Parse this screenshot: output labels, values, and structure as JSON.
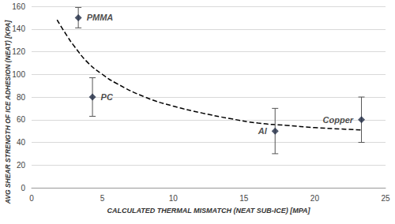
{
  "chart_data": {
    "type": "scatter",
    "x_label": "CALCULATED THERMAL MISMATCH (NEAT SUB-ICE) [MPA]",
    "y_label": "AVG SHEAR STRENGTH OF ICE ADHESION (NEAT) [KPA]",
    "points": {
      "labels": [
        "PMMA",
        "PC",
        "Al",
        "Copper"
      ],
      "x": [
        3.3,
        4.3,
        17.2,
        23.3
      ],
      "values": [
        150,
        80,
        50,
        60
      ],
      "y_err": [
        9,
        17,
        20,
        20
      ],
      "color": "#1f2a44",
      "marker": "diamond"
    },
    "trend": {
      "x": [
        1.8,
        2.5,
        3,
        4,
        5,
        6,
        8,
        10,
        12,
        14,
        16,
        18,
        20,
        23.3
      ],
      "values": [
        148,
        134,
        125,
        110,
        100,
        92,
        80,
        72,
        66,
        61,
        57,
        55,
        53,
        51
      ],
      "color": "#000000",
      "line_style": "dashed"
    },
    "xlim": [
      0,
      25
    ],
    "xticks": [
      0,
      5,
      10,
      15,
      20,
      25
    ],
    "ylim": [
      0,
      160
    ],
    "yticks": [
      0,
      20,
      40,
      60,
      80,
      100,
      120,
      140,
      160
    ],
    "grid": true
  }
}
